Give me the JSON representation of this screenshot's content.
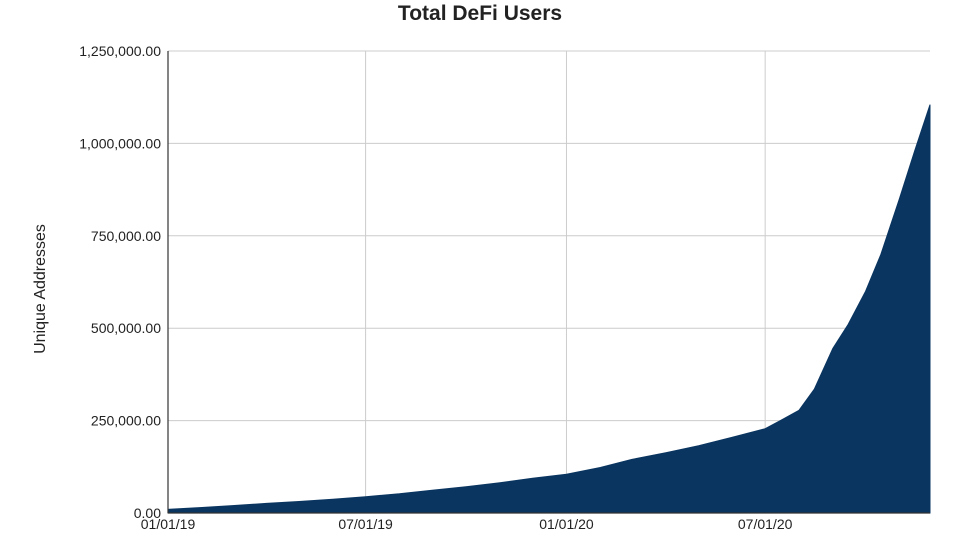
{
  "chart_data": {
    "type": "area",
    "title": "Total DeFi Users",
    "xlabel": "",
    "ylabel": "Unique Addresses",
    "x_ticks": [
      "01/01/19",
      "07/01/19",
      "01/01/20",
      "07/01/20"
    ],
    "x_range": [
      "2019-01-01",
      "2020-11-29"
    ],
    "y_ticks": [
      "0.00",
      "250,000.00",
      "500,000.00",
      "750,000.00",
      "1,000,000.00",
      "1,250,000.00"
    ],
    "ylim": [
      0,
      1250000
    ],
    "grid": true,
    "legend": "none",
    "colors": {
      "area": "#0a3560",
      "grid": "#cccccc",
      "axis": "#333333",
      "text": "#222222"
    },
    "series": [
      {
        "x": [
          "2019-01-01",
          "2019-02-01",
          "2019-03-01",
          "2019-04-01",
          "2019-05-01",
          "2019-06-01",
          "2019-07-01",
          "2019-08-01",
          "2019-09-01",
          "2019-10-01",
          "2019-11-01",
          "2019-12-01",
          "2020-01-01",
          "2020-02-01",
          "2020-03-01",
          "2020-04-01",
          "2020-05-01",
          "2020-06-01",
          "2020-07-01",
          "2020-07-15",
          "2020-08-01",
          "2020-08-15",
          "2020-09-01",
          "2020-09-15",
          "2020-10-01",
          "2020-10-15",
          "2020-11-01",
          "2020-11-15",
          "2020-11-29"
        ],
        "values": [
          10000,
          15000,
          20000,
          26000,
          31000,
          37000,
          44000,
          52000,
          62000,
          71000,
          82000,
          94000,
          105000,
          123000,
          145000,
          163000,
          182000,
          205000,
          228000,
          250000,
          278000,
          335000,
          445000,
          510000,
          600000,
          700000,
          850000,
          980000,
          1105000
        ]
      }
    ]
  }
}
